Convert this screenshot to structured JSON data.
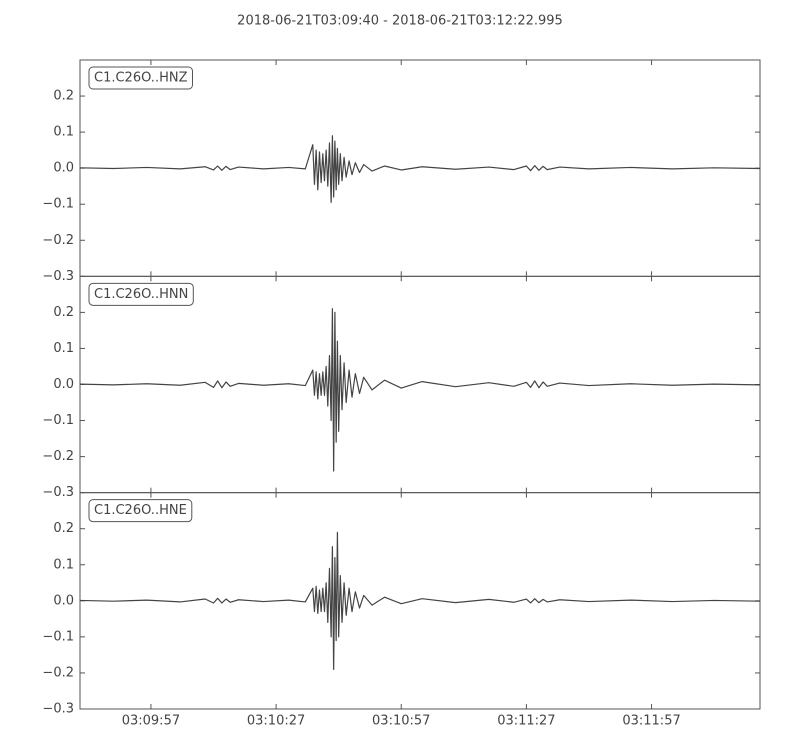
{
  "title": "2018-06-21T03:09:40  -  2018-06-21T03:12:22.995",
  "chart_data": [
    {
      "type": "line",
      "label": "C1.C26O..HNZ",
      "color": "#444444",
      "xlim": [
        0,
        162.995
      ],
      "xticks": [
        {
          "value": 17,
          "label": "03:09:57"
        },
        {
          "value": 47,
          "label": "03:10:27"
        },
        {
          "value": 77,
          "label": "03:10:57"
        },
        {
          "value": 107,
          "label": "03:11:27"
        },
        {
          "value": 137,
          "label": "03:11:57"
        }
      ],
      "ylim": [
        -0.3,
        0.3
      ],
      "yticks": [
        {
          "value": -0.3,
          "label": "−0.3"
        },
        {
          "value": -0.2,
          "label": "−0.2"
        },
        {
          "value": -0.1,
          "label": "−0.1"
        },
        {
          "value": 0,
          "label": "0.0"
        },
        0.1,
        0.2
      ],
      "x": [
        0,
        8,
        16,
        24,
        30,
        32,
        33,
        34,
        35,
        36,
        38,
        44,
        50,
        54,
        55.8,
        56.2,
        56.6,
        57,
        57.4,
        57.8,
        58.2,
        58.6,
        59,
        59.4,
        59.8,
        60.2,
        60.5,
        60.8,
        61.1,
        61.4,
        61.7,
        62,
        62.4,
        62.8,
        63.3,
        63.8,
        64.5,
        65.2,
        66,
        67,
        68,
        70,
        73,
        77,
        82,
        90,
        98,
        104,
        107,
        108,
        109,
        110,
        111,
        112,
        115,
        122,
        132,
        142,
        152,
        162.995
      ],
      "values": [
        0.001,
        -0.001,
        0.002,
        -0.002,
        0.004,
        -0.005,
        0.006,
        -0.006,
        0.005,
        -0.004,
        0.003,
        -0.002,
        0.002,
        -0.002,
        0.065,
        -0.045,
        0.05,
        -0.06,
        0.045,
        -0.04,
        0.04,
        -0.035,
        0.05,
        -0.05,
        0.07,
        -0.095,
        0.09,
        -0.08,
        0.075,
        -0.06,
        0.055,
        -0.045,
        0.04,
        -0.035,
        0.03,
        -0.025,
        0.02,
        -0.018,
        0.015,
        -0.012,
        0.01,
        -0.008,
        0.006,
        -0.005,
        0.004,
        -0.003,
        0.003,
        -0.004,
        0.006,
        -0.007,
        0.007,
        -0.006,
        0.005,
        -0.004,
        0.003,
        -0.002,
        0.002,
        -0.002,
        0.001,
        -0.001
      ]
    },
    {
      "type": "line",
      "label": "C1.C26O..HNN",
      "color": "#444444",
      "xlim": [
        0,
        162.995
      ],
      "xticks": [
        {
          "value": 17,
          "label": "03:09:57"
        },
        {
          "value": 47,
          "label": "03:10:27"
        },
        {
          "value": 77,
          "label": "03:10:57"
        },
        {
          "value": 107,
          "label": "03:11:27"
        },
        {
          "value": 137,
          "label": "03:11:57"
        }
      ],
      "ylim": [
        -0.3,
        0.3
      ],
      "yticks": [
        {
          "value": -0.3,
          "label": "−0.3"
        },
        {
          "value": -0.2,
          "label": "−0.2"
        },
        {
          "value": -0.1,
          "label": "−0.1"
        },
        {
          "value": 0,
          "label": "0.0"
        },
        0.1,
        0.2
      ],
      "x": [
        0,
        8,
        16,
        24,
        30,
        32,
        33,
        34,
        35,
        36,
        38,
        44,
        50,
        54,
        55.8,
        56.2,
        56.6,
        57,
        57.4,
        57.8,
        58.2,
        58.6,
        59,
        59.4,
        59.8,
        60.2,
        60.5,
        60.8,
        61.1,
        61.4,
        61.7,
        62,
        62.4,
        62.8,
        63.3,
        63.8,
        64.5,
        65.2,
        66,
        67,
        68,
        70,
        73,
        77,
        82,
        90,
        98,
        104,
        107,
        108,
        109,
        110,
        111,
        112,
        115,
        122,
        132,
        142,
        152,
        162.995
      ],
      "values": [
        0.001,
        -0.001,
        0.002,
        -0.002,
        0.006,
        -0.008,
        0.01,
        -0.009,
        0.007,
        -0.005,
        0.003,
        -0.002,
        0.002,
        -0.003,
        0.04,
        -0.03,
        0.035,
        -0.04,
        0.03,
        -0.03,
        0.035,
        -0.03,
        0.05,
        -0.06,
        0.08,
        -0.1,
        0.21,
        -0.24,
        0.2,
        -0.16,
        0.12,
        -0.13,
        0.08,
        -0.07,
        0.06,
        -0.05,
        0.04,
        -0.035,
        0.03,
        -0.025,
        0.02,
        -0.015,
        0.012,
        -0.01,
        0.008,
        -0.006,
        0.005,
        -0.005,
        0.006,
        -0.008,
        0.01,
        -0.009,
        0.007,
        -0.005,
        0.004,
        -0.003,
        0.002,
        -0.002,
        0.001,
        -0.001
      ]
    },
    {
      "type": "line",
      "label": "C1.C26O..HNE",
      "color": "#444444",
      "xlim": [
        0,
        162.995
      ],
      "xticks": [
        {
          "value": 17,
          "label": "03:09:57"
        },
        {
          "value": 47,
          "label": "03:10:27"
        },
        {
          "value": 77,
          "label": "03:10:57"
        },
        {
          "value": 107,
          "label": "03:11:27"
        },
        {
          "value": 137,
          "label": "03:11:57"
        }
      ],
      "ylim": [
        -0.3,
        0.3
      ],
      "yticks": [
        {
          "value": -0.3,
          "label": "−0.3"
        },
        {
          "value": -0.2,
          "label": "−0.2"
        },
        {
          "value": -0.1,
          "label": "−0.1"
        },
        {
          "value": 0,
          "label": "0.0"
        },
        0.1,
        0.2
      ],
      "x": [
        0,
        8,
        16,
        24,
        30,
        32,
        33,
        34,
        35,
        36,
        38,
        44,
        50,
        54,
        55.8,
        56.2,
        56.6,
        57,
        57.4,
        57.8,
        58.2,
        58.6,
        59,
        59.4,
        59.8,
        60.2,
        60.5,
        60.8,
        61.1,
        61.4,
        61.7,
        62,
        62.4,
        62.8,
        63.3,
        63.8,
        64.5,
        65.2,
        66,
        67,
        68,
        70,
        73,
        77,
        82,
        90,
        98,
        104,
        107,
        108,
        109,
        110,
        111,
        112,
        115,
        122,
        132,
        142,
        152,
        162.995
      ],
      "values": [
        0.001,
        -0.001,
        0.002,
        -0.003,
        0.005,
        -0.006,
        0.007,
        -0.006,
        0.005,
        -0.004,
        0.003,
        -0.002,
        0.002,
        -0.003,
        0.035,
        -0.03,
        0.04,
        -0.035,
        0.03,
        -0.03,
        0.035,
        -0.03,
        0.05,
        -0.06,
        0.09,
        -0.1,
        0.15,
        -0.19,
        0.12,
        -0.11,
        0.19,
        -0.1,
        0.07,
        -0.06,
        0.05,
        -0.04,
        0.035,
        -0.03,
        0.025,
        -0.02,
        0.015,
        -0.012,
        0.01,
        -0.008,
        0.006,
        -0.005,
        0.004,
        -0.004,
        0.005,
        -0.006,
        0.006,
        -0.005,
        0.004,
        -0.003,
        0.003,
        -0.002,
        0.002,
        -0.002,
        0.001,
        -0.001
      ]
    }
  ]
}
